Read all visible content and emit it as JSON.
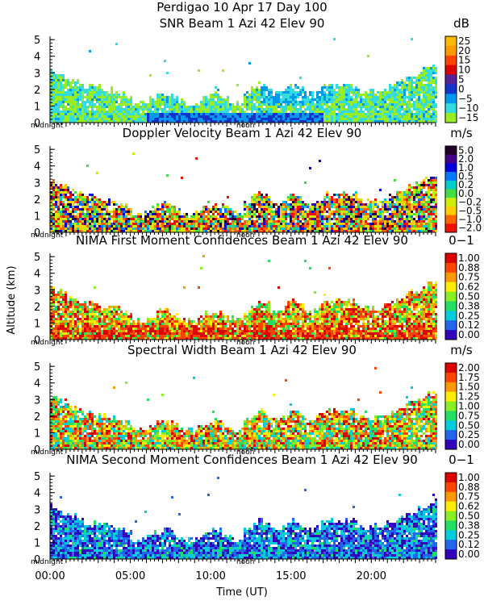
{
  "header": {
    "line1": "Perdigao  10 Apr 17 Day 100"
  },
  "axes": {
    "ylabel": "Altitude (km)",
    "xlabel": "Time (UT)",
    "xticks": [
      "00:00",
      "05:00",
      "10:00",
      "15:00",
      "20:00"
    ],
    "xrange_hours": [
      0,
      24
    ],
    "yticks": [
      "0",
      "1",
      "2",
      "3",
      "4",
      "5"
    ],
    "yrange_km": [
      0,
      5.2
    ],
    "midnight_label": "midnight",
    "noon_label": "noon"
  },
  "chart_data": [
    {
      "type": "heatmap",
      "title": "SNR Beam 1 Azi  42 Elev 90",
      "unit": "dB",
      "colorbar": [
        "25",
        "20",
        "15",
        "10",
        "5",
        "0",
        "−5",
        "−10",
        "−15"
      ],
      "colors": [
        "#ffb800",
        "#ff9900",
        "#ff4400",
        "#dd0000",
        "#552299",
        "#1133cc",
        "#0099ee",
        "#33dddd",
        "#99ee22"
      ],
      "description_field": "signal-to-noise ratio vs time and altitude"
    },
    {
      "type": "heatmap",
      "title": "Doppler Velocity Beam 1 Azi  42 Elev 90",
      "unit": "m/s",
      "colorbar": [
        "5.0",
        "2.0",
        "1.0",
        "0.5",
        "0.2",
        "0.0",
        "−0.2",
        "−0.5",
        "−1.0",
        "−2.0"
      ],
      "colors": [
        "#220022",
        "#440088",
        "#0000dd",
        "#0077ff",
        "#00cccc",
        "#44dd44",
        "#ccee00",
        "#ffcc00",
        "#ff6600",
        "#ee1100"
      ]
    },
    {
      "type": "heatmap",
      "title": "NIMA First Moment Confidences Beam 1 Azi  42 Elev 90",
      "unit": "0−1",
      "colorbar": [
        "1.00",
        "0.88",
        "0.75",
        "0.62",
        "0.50",
        "0.38",
        "0.25",
        "0.12",
        "0.00"
      ],
      "colors": [
        "#dd0000",
        "#ff4400",
        "#ff9900",
        "#ffee00",
        "#88ee22",
        "#22dd66",
        "#00ccdd",
        "#2266ee",
        "#3300bb"
      ]
    },
    {
      "type": "heatmap",
      "title": "Spectral Width Beam 1 Azi  42 Elev 90",
      "unit": "m/s",
      "colorbar": [
        "2.00",
        "1.75",
        "1.50",
        "1.25",
        "1.00",
        "0.75",
        "0.50",
        "0.25",
        "0.00"
      ],
      "colors": [
        "#dd0000",
        "#ff4400",
        "#ff9900",
        "#ffee00",
        "#88ee22",
        "#22dd66",
        "#00ccdd",
        "#2266ee",
        "#3300bb"
      ]
    },
    {
      "type": "heatmap",
      "title": "NIMA Second Moment Confidences Beam 1 Azi  42 Elev 90",
      "unit": "0−1",
      "colorbar": [
        "1.00",
        "0.88",
        "0.75",
        "0.62",
        "0.50",
        "0.38",
        "0.25",
        "0.12",
        "0.00"
      ],
      "colors": [
        "#dd0000",
        "#ff4400",
        "#ff9900",
        "#ffee00",
        "#88ee22",
        "#22dd66",
        "#00ccdd",
        "#2266ee",
        "#3300bb"
      ]
    }
  ]
}
